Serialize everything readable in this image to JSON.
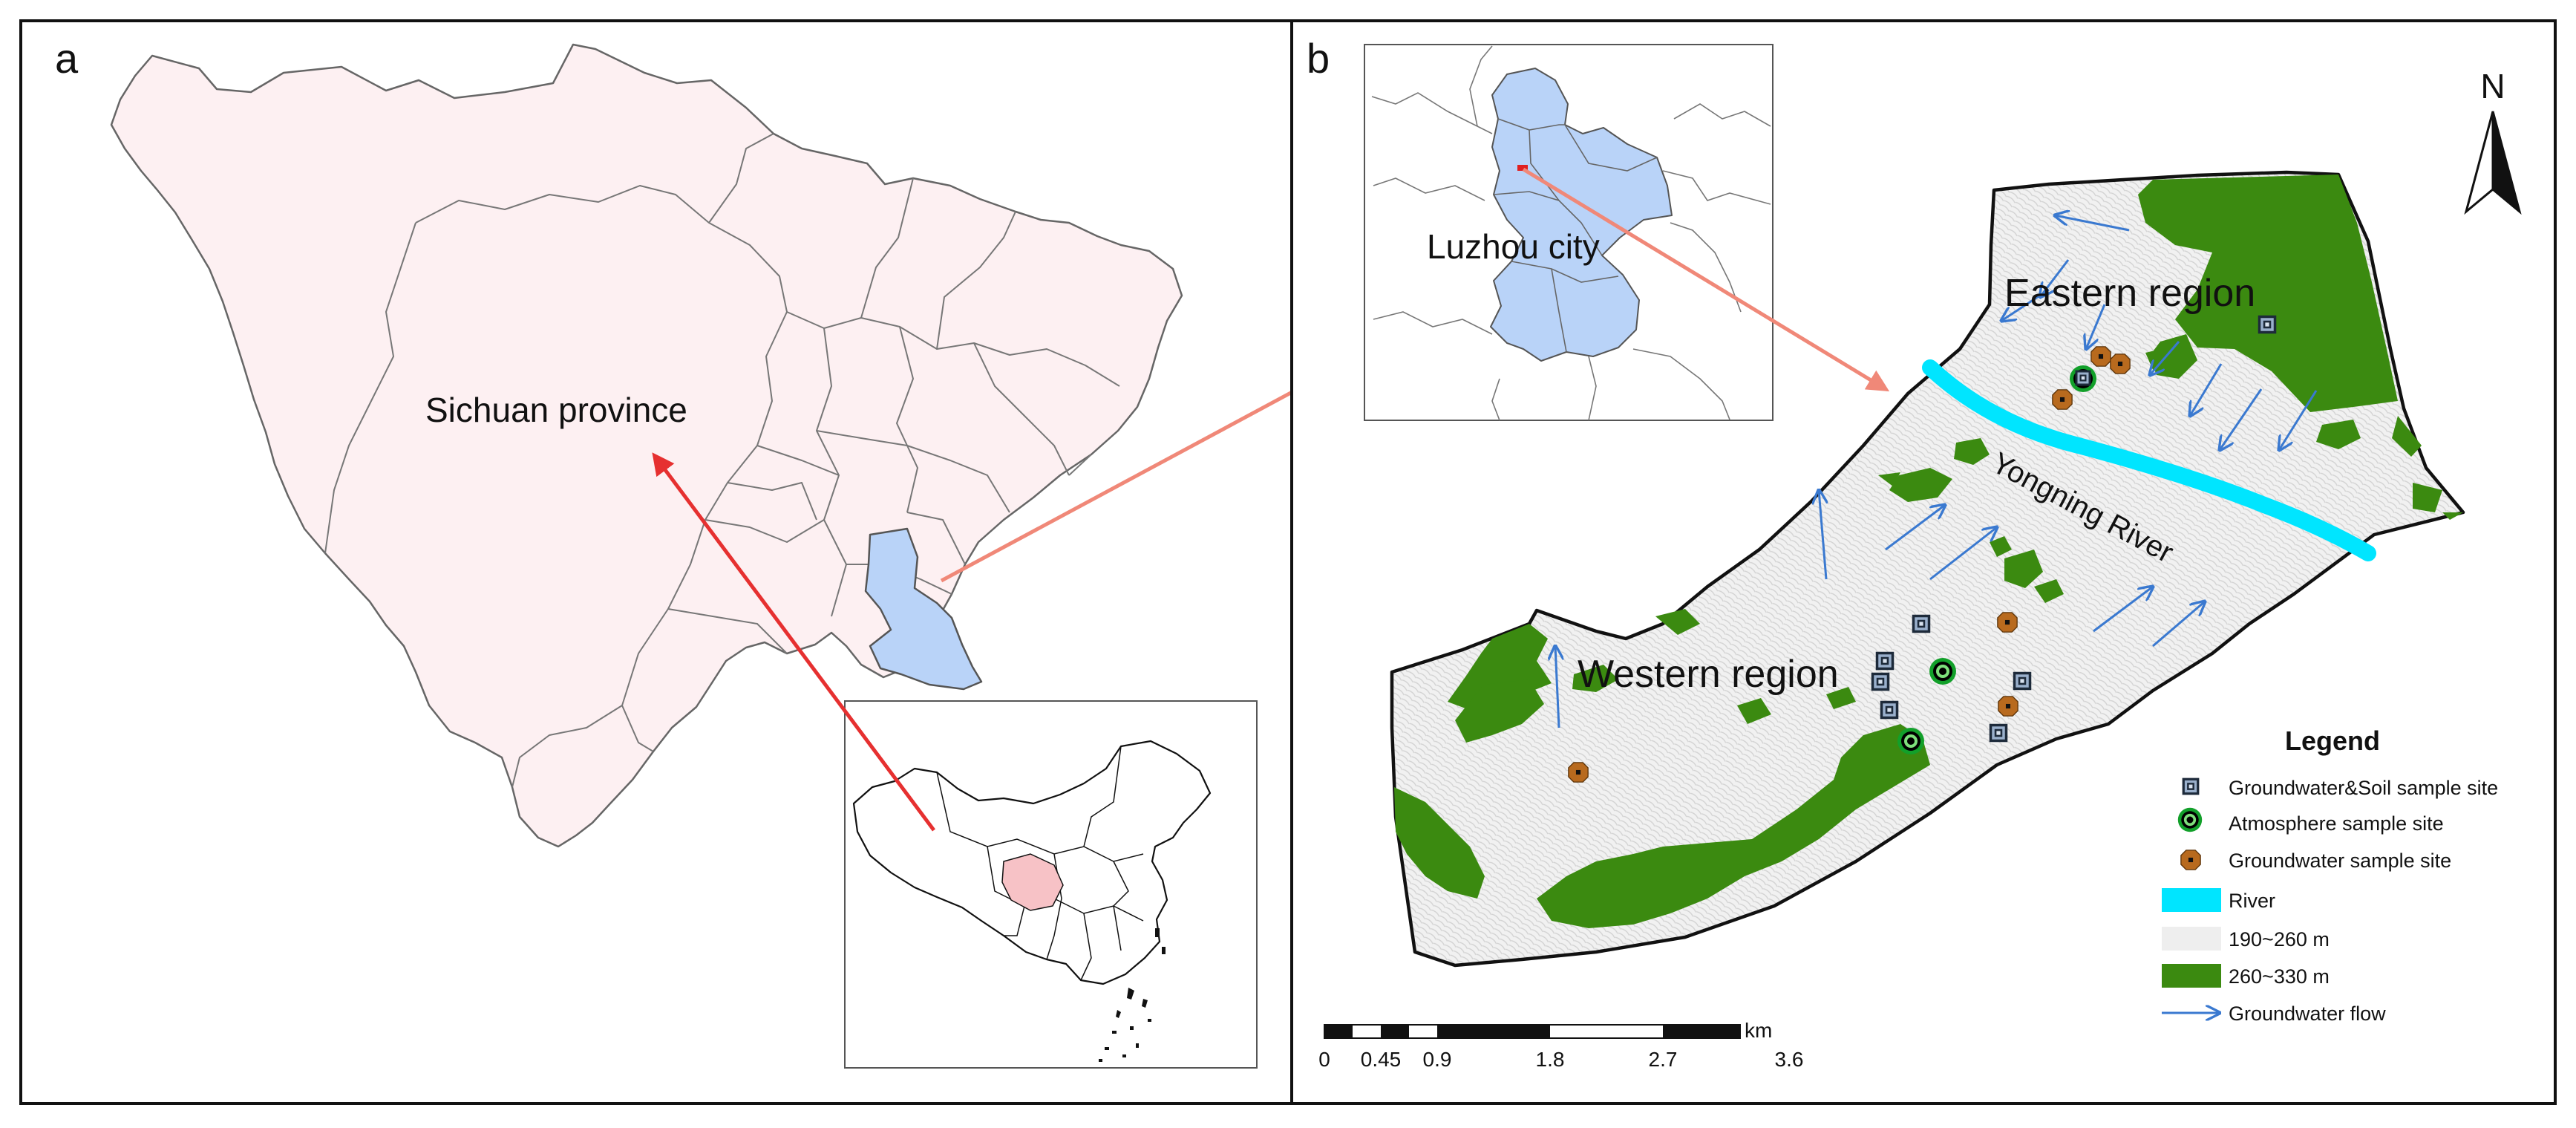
{
  "panel_a": {
    "letter": "a",
    "province_label": "Sichuan province",
    "colors": {
      "province_fill": "#fdf0f2",
      "luzhou_fill": "#b9d3f8",
      "china_highlight": "#f7c2c6"
    }
  },
  "panel_b": {
    "letter": "b",
    "inset_label": "Luzhou city",
    "eastern_label": "Eastern region",
    "western_label": "Western region",
    "river_label": "Yongning River",
    "north_label": "N",
    "legend": {
      "title": "Legend",
      "items": [
        {
          "label": "Groundwater&Soil sample site",
          "symbol": "square-site"
        },
        {
          "label": "Atmosphere sample site",
          "symbol": "ring-site"
        },
        {
          "label": "Groundwater sample site",
          "symbol": "octagon-site"
        },
        {
          "label": "River",
          "symbol": "river-swatch",
          "color": "#00e5ff"
        },
        {
          "label": "190~260 m",
          "symbol": "low-elevation-swatch",
          "color": "#eeeeee"
        },
        {
          "label": "260~330 m",
          "symbol": "high-elevation-swatch",
          "color": "#3b8a10"
        },
        {
          "label": "Groundwater flow",
          "symbol": "flow-arrow",
          "color": "#3a79d0"
        }
      ]
    },
    "scale_bar": {
      "unit": "km",
      "ticks": [
        "0",
        "0.45",
        "0.9",
        "1.8",
        "2.7",
        "3.6"
      ]
    }
  }
}
